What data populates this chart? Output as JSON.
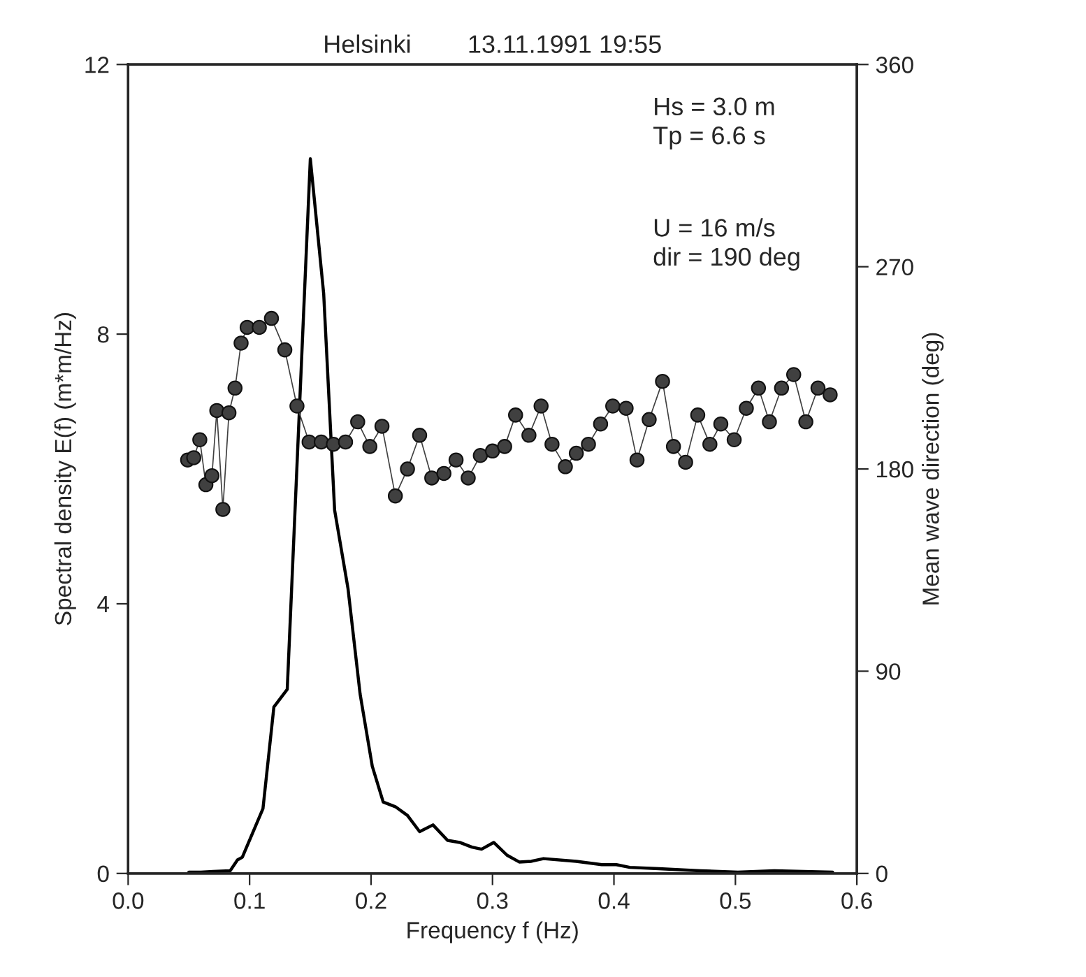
{
  "chart_data": {
    "type": "line",
    "title": "Helsinki        13.11.1991 19:55",
    "xlabel": "Frequency f (Hz)",
    "ylabel": "Spectral density E(f) (m*m/Hz)",
    "y2label": "Mean wave direction (deg)",
    "xlim": [
      0.0,
      0.6
    ],
    "xticks": [
      {
        "value": 0.0,
        "label": "0.0"
      },
      0.1,
      0.2,
      0.3,
      0.4,
      0.5,
      0.6
    ],
    "ylim": [
      0,
      12
    ],
    "yticks": [
      0,
      4,
      8,
      12
    ],
    "y2lim": [
      0,
      360
    ],
    "y2ticks": [
      0,
      90,
      180,
      270,
      360
    ],
    "grid": false,
    "legend": false,
    "annotations": [
      "Hs = 3.0 m\nTp = 6.6 s",
      "U = 16 m/s\ndir = 190 deg"
    ],
    "series": [
      {
        "color": "#000000",
        "marker": "none",
        "line_style": "solid",
        "x": [
          0.05,
          0.06,
          0.07,
          0.084,
          0.09,
          0.094,
          0.111,
          0.12,
          0.131,
          0.15,
          0.161,
          0.17,
          0.181,
          0.191,
          0.201,
          0.21,
          0.22,
          0.23,
          0.24,
          0.251,
          0.263,
          0.273,
          0.283,
          0.291,
          0.301,
          0.312,
          0.322,
          0.332,
          0.342,
          0.369,
          0.39,
          0.402,
          0.413,
          0.437,
          0.471,
          0.502,
          0.532,
          0.58
        ],
        "values": [
          0.02,
          0.02,
          0.03,
          0.04,
          0.2,
          0.24,
          0.96,
          2.47,
          2.73,
          10.6,
          8.6,
          5.39,
          4.23,
          2.66,
          1.59,
          1.06,
          0.99,
          0.86,
          0.62,
          0.72,
          0.49,
          0.46,
          0.39,
          0.36,
          0.46,
          0.27,
          0.17,
          0.18,
          0.22,
          0.18,
          0.13,
          0.13,
          0.09,
          0.07,
          0.04,
          0.02,
          0.04,
          0.02
        ]
      },
      {
        "color": "#404040",
        "axis": "y2",
        "marker": "circle",
        "line_style": "solid",
        "x": [
          0.049,
          0.054,
          0.059,
          0.064,
          0.069,
          0.073,
          0.078,
          0.083,
          0.088,
          0.093,
          0.098,
          0.108,
          0.118,
          0.129,
          0.139,
          0.149,
          0.159,
          0.169,
          0.179,
          0.189,
          0.199,
          0.209,
          0.22,
          0.23,
          0.24,
          0.25,
          0.26,
          0.27,
          0.28,
          0.29,
          0.3,
          0.31,
          0.319,
          0.33,
          0.34,
          0.349,
          0.36,
          0.369,
          0.379,
          0.389,
          0.399,
          0.41,
          0.419,
          0.429,
          0.44,
          0.449,
          0.459,
          0.469,
          0.479,
          0.488,
          0.499,
          0.509,
          0.519,
          0.528,
          0.538,
          0.548,
          0.558,
          0.568,
          0.578
        ],
        "values": [
          184,
          185,
          193,
          173,
          177,
          206,
          162,
          205,
          216,
          236,
          243,
          243,
          247,
          233,
          208,
          192,
          192,
          191,
          192,
          201,
          190,
          199,
          168,
          180,
          195,
          176,
          178,
          184,
          176,
          186,
          188,
          190,
          204,
          195,
          208,
          191,
          181,
          187,
          191,
          200,
          208,
          207,
          184,
          202,
          219,
          190,
          183,
          204,
          191,
          200,
          193,
          207,
          216,
          201,
          216,
          222,
          201,
          216,
          213
        ]
      }
    ]
  }
}
